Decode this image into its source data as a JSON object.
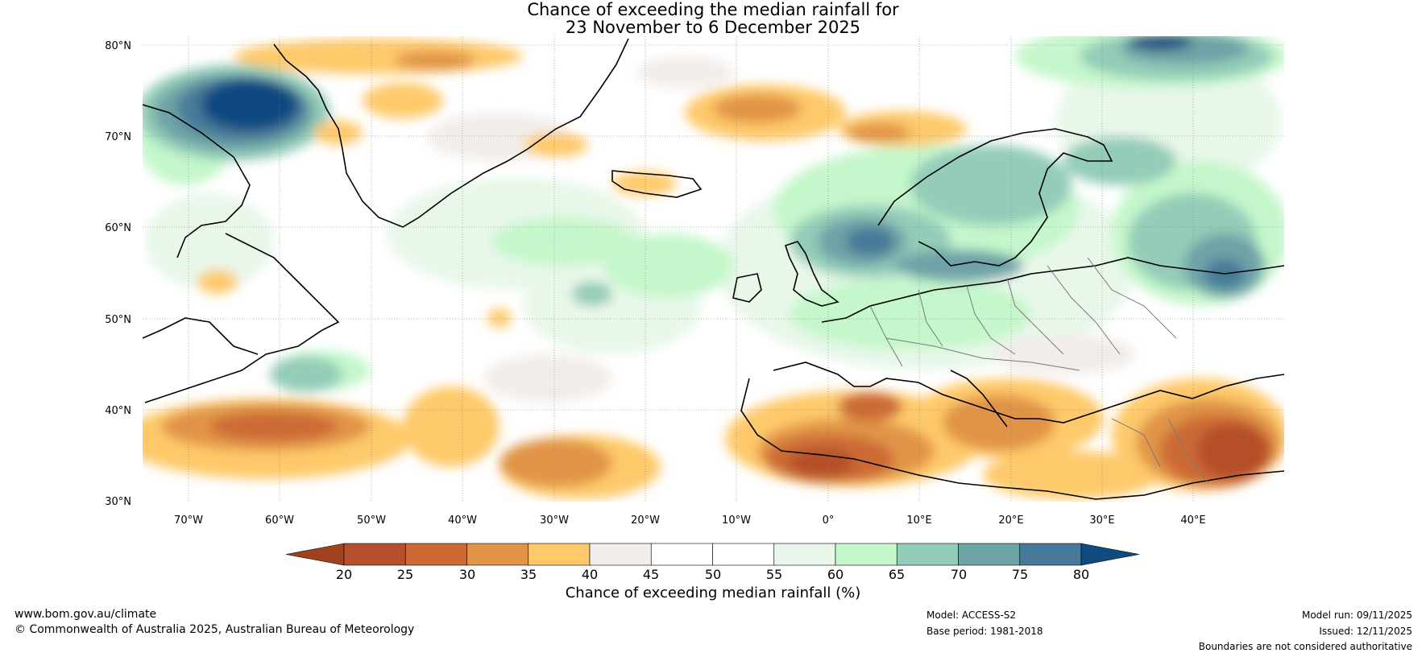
{
  "title": {
    "line1": "Chance of exceeding the median rainfall for",
    "line2": "23 November to 6 December 2025"
  },
  "map": {
    "lat_labels": [
      "80°N",
      "70°N",
      "60°N",
      "50°N",
      "40°N",
      "30°N"
    ],
    "lon_labels": [
      "70°W",
      "60°W",
      "50°W",
      "40°W",
      "30°W",
      "20°W",
      "10°W",
      "0°",
      "10°E",
      "20°E",
      "30°E",
      "40°E"
    ],
    "extent": {
      "lon_min": -75,
      "lon_max": 50,
      "lat_min": 30,
      "lat_max": 81
    }
  },
  "colorbar": {
    "ticks": [
      "20",
      "25",
      "30",
      "35",
      "40",
      "45",
      "50",
      "55",
      "60",
      "65",
      "70",
      "75",
      "80"
    ],
    "colors": [
      "#a0411f",
      "#b5502a",
      "#cc6a35",
      "#e19446",
      "#fec96a",
      "#f2ede9",
      "#ffffff",
      "#ffffff",
      "#e8f7e9",
      "#c4f7cb",
      "#93ccb8",
      "#6ea3a7",
      "#467a98",
      "#0f4a80"
    ],
    "label": "Chance of exceeding median rainfall (%)"
  },
  "footer": {
    "url": "www.bom.gov.au/climate",
    "copyright": "© Commonwealth of Australia 2025, Australian Bureau of Meteorology",
    "model": "Model: ACCESS-S2",
    "base_period": "Base period: 1981-2018",
    "model_run": "Model run: 09/11/2025",
    "issued": "Issued: 12/11/2025",
    "disclaimer": "Boundaries are not considered authoritative"
  }
}
